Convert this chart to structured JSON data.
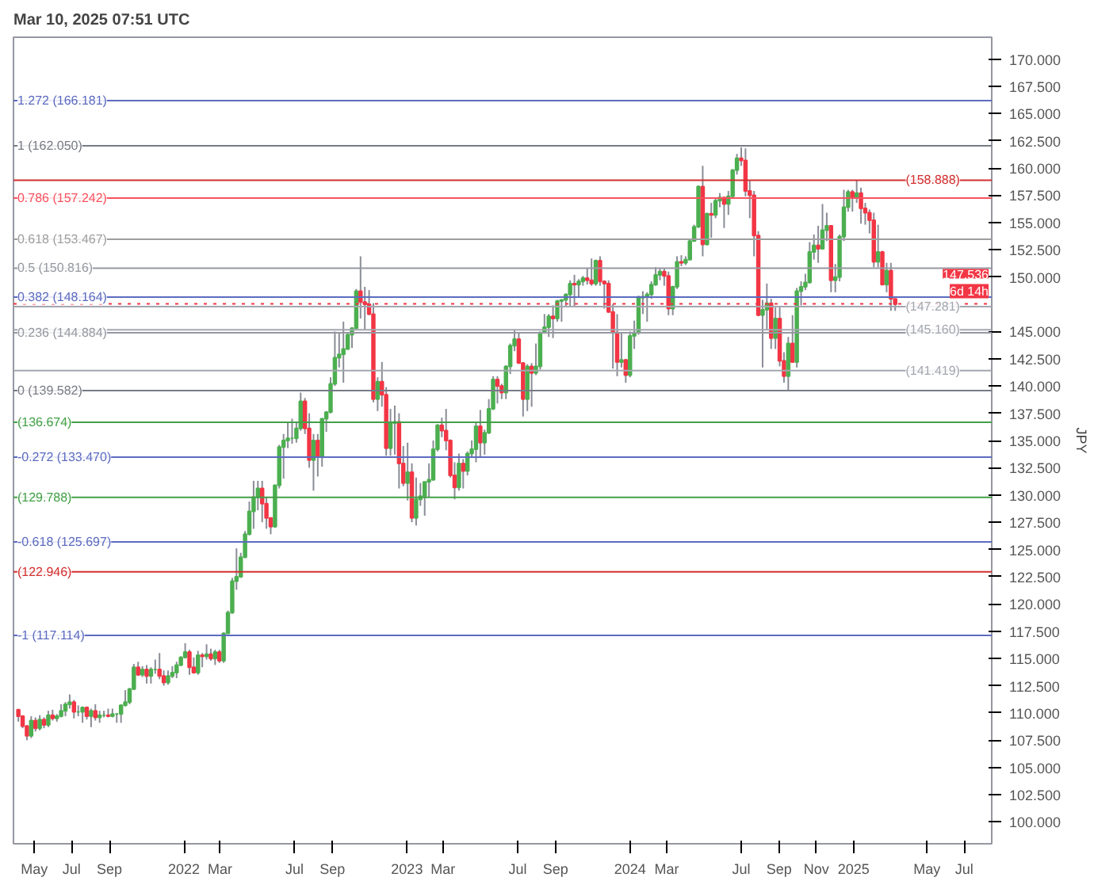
{
  "chart_data": {
    "type": "candlestick",
    "ylabel": "JPY",
    "annotations": [
      "Mar 10, 2025 07:51 UTC",
      "6d 14h"
    ],
    "grid": false,
    "xlim": [
      "2021-03-28",
      "2025-08-15"
    ],
    "xticks": [
      {
        "value": "2021-05-01",
        "label": "May"
      },
      {
        "value": "2021-07-01",
        "label": "Jul"
      },
      {
        "value": "2021-09-01",
        "label": "Sep"
      },
      {
        "value": "2022-01-01",
        "label": "2022"
      },
      {
        "value": "2022-03-01",
        "label": "Mar"
      },
      {
        "value": "2022-07-01",
        "label": "Jul"
      },
      {
        "value": "2022-09-01",
        "label": "Sep"
      },
      {
        "value": "2023-01-01",
        "label": "2023"
      },
      {
        "value": "2023-03-01",
        "label": "Mar"
      },
      {
        "value": "2023-07-01",
        "label": "Jul"
      },
      {
        "value": "2023-09-01",
        "label": "Sep"
      },
      {
        "value": "2024-01-01",
        "label": "2024"
      },
      {
        "value": "2024-03-01",
        "label": "Mar"
      },
      {
        "value": "2024-07-01",
        "label": "Jul"
      },
      {
        "value": "2024-09-01",
        "label": "Sep"
      },
      {
        "value": "2024-11-01",
        "label": "Nov"
      },
      {
        "value": "2025-01-01",
        "label": "2025"
      },
      {
        "value": "2025-05-01",
        "label": "May"
      },
      {
        "value": "2025-07-01",
        "label": "Jul"
      }
    ],
    "ylim": [
      98,
      172
    ],
    "yticks": [
      {
        "value": 100,
        "label": "100.000"
      },
      {
        "value": 102.5,
        "label": "102.500"
      },
      {
        "value": 105,
        "label": "105.000"
      },
      {
        "value": 107.5,
        "label": "107.500"
      },
      {
        "value": 110,
        "label": "110.000"
      },
      {
        "value": 112.5,
        "label": "112.500"
      },
      {
        "value": 115,
        "label": "115.000"
      },
      {
        "value": 117.5,
        "label": "117.500"
      },
      {
        "value": 120,
        "label": "120.000"
      },
      {
        "value": 122.5,
        "label": "122.500"
      },
      {
        "value": 125,
        "label": "125.000"
      },
      {
        "value": 127.5,
        "label": "127.500"
      },
      {
        "value": 130,
        "label": "130.000"
      },
      {
        "value": 132.5,
        "label": "132.500"
      },
      {
        "value": 135,
        "label": "135.000"
      },
      {
        "value": 137.5,
        "label": "137.500"
      },
      {
        "value": 140,
        "label": "140.000"
      },
      {
        "value": 142.5,
        "label": "142.500"
      },
      {
        "value": 145,
        "label": "145.000"
      },
      {
        "value": 150,
        "label": "150.000"
      },
      {
        "value": 152.5,
        "label": "152.500"
      },
      {
        "value": 155,
        "label": "155.000"
      },
      {
        "value": 157.5,
        "label": "157.500"
      },
      {
        "value": 160,
        "label": "160.000"
      },
      {
        "value": 162.5,
        "label": "162.500"
      },
      {
        "value": 165,
        "label": "165.000"
      },
      {
        "value": 167.5,
        "label": "167.500"
      },
      {
        "value": 170,
        "label": "170.000"
      }
    ],
    "ref_lines": [
      {
        "axis": "y",
        "value": 166.181,
        "label": "1.272 (166.181)",
        "color": "#5c6bc0"
      },
      {
        "axis": "y",
        "value": 162.05,
        "label": "1 (162.050)",
        "color": "#787b86"
      },
      {
        "axis": "y",
        "value": 157.242,
        "label": "0.786 (157.242)",
        "color": "#f7525f"
      },
      {
        "axis": "y",
        "value": 153.467,
        "label": "0.618 (153.467)",
        "color": "#9e9e9e"
      },
      {
        "axis": "y",
        "value": 150.816,
        "label": "0.5 (150.816)",
        "color": "#9598a1"
      },
      {
        "axis": "y",
        "value": 148.164,
        "label": "0.382 (148.164)",
        "color": "#5c6bc0"
      },
      {
        "axis": "y",
        "value": 144.884,
        "label": "0.236 (144.884)",
        "color": "#9598a1"
      },
      {
        "axis": "y",
        "value": 139.582,
        "label": "0 (139.582)",
        "color": "#787b86"
      },
      {
        "axis": "y",
        "value": 133.47,
        "label": "-0.272 (133.470)",
        "color": "#5c6bc0"
      },
      {
        "axis": "y",
        "value": 125.697,
        "label": "-0.618 (125.697)",
        "color": "#5c6bc0"
      },
      {
        "axis": "y",
        "value": 117.114,
        "label": "-1 (117.114)",
        "color": "#5c6bc0"
      },
      {
        "axis": "y",
        "value": 158.888,
        "label": "(158.888)",
        "color": "#d32f2f"
      },
      {
        "axis": "y",
        "value": 147.281,
        "label": "(147.281)",
        "color": "#a3a6af"
      },
      {
        "axis": "y",
        "value": 145.16,
        "label": "(145.160)",
        "color": "#a3a6af"
      },
      {
        "axis": "y",
        "value": 141.419,
        "label": "(141.419)",
        "color": "#a3a6af"
      },
      {
        "axis": "y",
        "value": 136.674,
        "label": "(136.674)",
        "color": "#43a047"
      },
      {
        "axis": "y",
        "value": 129.788,
        "label": "(129.788)",
        "color": "#43a047"
      },
      {
        "axis": "y",
        "value": 122.946,
        "label": "(122.946)",
        "color": "#d32f2f"
      },
      {
        "axis": "y",
        "value": 147.536,
        "label": "147.536",
        "color": "#f23645",
        "line_style": "dotted"
      }
    ],
    "x": [
      "2021-04-05",
      "2021-04-12",
      "2021-04-19",
      "2021-04-26",
      "2021-05-03",
      "2021-05-10",
      "2021-05-17",
      "2021-05-24",
      "2021-05-31",
      "2021-06-07",
      "2021-06-14",
      "2021-06-21",
      "2021-06-28",
      "2021-07-05",
      "2021-07-12",
      "2021-07-19",
      "2021-07-26",
      "2021-08-02",
      "2021-08-09",
      "2021-08-16",
      "2021-08-23",
      "2021-08-30",
      "2021-09-06",
      "2021-09-13",
      "2021-09-20",
      "2021-09-27",
      "2021-10-04",
      "2021-10-11",
      "2021-10-18",
      "2021-10-25",
      "2021-11-01",
      "2021-11-08",
      "2021-11-15",
      "2021-11-22",
      "2021-11-29",
      "2021-12-06",
      "2021-12-13",
      "2021-12-20",
      "2021-12-27",
      "2022-01-03",
      "2022-01-10",
      "2022-01-17",
      "2022-01-24",
      "2022-01-31",
      "2022-02-07",
      "2022-02-14",
      "2022-02-21",
      "2022-02-28",
      "2022-03-07",
      "2022-03-14",
      "2022-03-21",
      "2022-03-28",
      "2022-04-04",
      "2022-04-11",
      "2022-04-18",
      "2022-04-25",
      "2022-05-02",
      "2022-05-09",
      "2022-05-16",
      "2022-05-23",
      "2022-05-30",
      "2022-06-06",
      "2022-06-13",
      "2022-06-20",
      "2022-06-27",
      "2022-07-04",
      "2022-07-11",
      "2022-07-18",
      "2022-07-25",
      "2022-08-01",
      "2022-08-08",
      "2022-08-15",
      "2022-08-22",
      "2022-08-29",
      "2022-09-05",
      "2022-09-12",
      "2022-09-19",
      "2022-09-26",
      "2022-10-03",
      "2022-10-10",
      "2022-10-17",
      "2022-10-24",
      "2022-10-31",
      "2022-11-07",
      "2022-11-14",
      "2022-11-21",
      "2022-11-28",
      "2022-12-05",
      "2022-12-12",
      "2022-12-19",
      "2022-12-26",
      "2023-01-02",
      "2023-01-09",
      "2023-01-16",
      "2023-01-23",
      "2023-01-30",
      "2023-02-06",
      "2023-02-13",
      "2023-02-20",
      "2023-02-27",
      "2023-03-06",
      "2023-03-13",
      "2023-03-20",
      "2023-03-27",
      "2023-04-03",
      "2023-04-10",
      "2023-04-17",
      "2023-04-24",
      "2023-05-01",
      "2023-05-08",
      "2023-05-15",
      "2023-05-22",
      "2023-05-29",
      "2023-06-05",
      "2023-06-12",
      "2023-06-19",
      "2023-06-26",
      "2023-07-03",
      "2023-07-10",
      "2023-07-17",
      "2023-07-24",
      "2023-07-31",
      "2023-08-07",
      "2023-08-14",
      "2023-08-21",
      "2023-08-28",
      "2023-09-04",
      "2023-09-11",
      "2023-09-18",
      "2023-09-25",
      "2023-10-02",
      "2023-10-09",
      "2023-10-16",
      "2023-10-23",
      "2023-10-30",
      "2023-11-06",
      "2023-11-13",
      "2023-11-20",
      "2023-11-27",
      "2023-12-04",
      "2023-12-11",
      "2023-12-18",
      "2023-12-25",
      "2024-01-01",
      "2024-01-08",
      "2024-01-15",
      "2024-01-22",
      "2024-01-29",
      "2024-02-05",
      "2024-02-12",
      "2024-02-19",
      "2024-02-26",
      "2024-03-04",
      "2024-03-11",
      "2024-03-18",
      "2024-03-25",
      "2024-04-01",
      "2024-04-08",
      "2024-04-15",
      "2024-04-22",
      "2024-04-29",
      "2024-05-06",
      "2024-05-13",
      "2024-05-20",
      "2024-05-27",
      "2024-06-03",
      "2024-06-10",
      "2024-06-17",
      "2024-06-24",
      "2024-07-01",
      "2024-07-08",
      "2024-07-15",
      "2024-07-22",
      "2024-07-29",
      "2024-08-05",
      "2024-08-12",
      "2024-08-19",
      "2024-08-26",
      "2024-09-02",
      "2024-09-09",
      "2024-09-16",
      "2024-09-23",
      "2024-09-30",
      "2024-10-07",
      "2024-10-14",
      "2024-10-21",
      "2024-10-28",
      "2024-11-04",
      "2024-11-11",
      "2024-11-18",
      "2024-11-25",
      "2024-12-02",
      "2024-12-09",
      "2024-12-16",
      "2024-12-23",
      "2024-12-30",
      "2025-01-06",
      "2025-01-13",
      "2025-01-20",
      "2025-01-27",
      "2025-02-03",
      "2025-02-10",
      "2025-02-17",
      "2025-02-24",
      "2025-03-03",
      "2025-03-10"
    ],
    "ohlc": [
      [
        110.3,
        110.3,
        109.2,
        109.7
      ],
      [
        109.7,
        109.8,
        108.6,
        108.8
      ],
      [
        108.8,
        108.9,
        107.5,
        107.9
      ],
      [
        107.9,
        109.7,
        107.7,
        109.3
      ],
      [
        109.3,
        109.6,
        108.3,
        108.6
      ],
      [
        108.6,
        109.8,
        108.4,
        109.4
      ],
      [
        109.4,
        109.6,
        108.6,
        108.9
      ],
      [
        108.9,
        110.2,
        108.7,
        109.8
      ],
      [
        109.8,
        110.3,
        109.3,
        109.5
      ],
      [
        109.5,
        109.9,
        109.2,
        109.7
      ],
      [
        109.7,
        110.8,
        109.6,
        110.2
      ],
      [
        110.2,
        111.0,
        109.7,
        110.8
      ],
      [
        110.8,
        111.7,
        110.4,
        111.0
      ],
      [
        111.0,
        111.2,
        109.5,
        110.1
      ],
      [
        110.1,
        110.7,
        109.7,
        110.1
      ],
      [
        110.1,
        110.6,
        109.1,
        110.5
      ],
      [
        110.5,
        110.6,
        109.4,
        109.7
      ],
      [
        109.7,
        110.4,
        108.7,
        110.2
      ],
      [
        110.2,
        110.8,
        109.3,
        109.6
      ],
      [
        109.6,
        110.2,
        109.1,
        109.8
      ],
      [
        109.8,
        110.2,
        109.6,
        109.8
      ],
      [
        109.8,
        110.4,
        109.6,
        109.7
      ],
      [
        109.7,
        110.4,
        109.6,
        109.9
      ],
      [
        109.9,
        110.0,
        109.1,
        109.9
      ],
      [
        109.9,
        110.8,
        109.1,
        110.7
      ],
      [
        110.7,
        112.1,
        110.6,
        111.0
      ],
      [
        111.0,
        112.3,
        110.8,
        112.2
      ],
      [
        112.2,
        114.5,
        112.1,
        114.2
      ],
      [
        114.2,
        114.7,
        113.4,
        113.5
      ],
      [
        113.5,
        114.3,
        113.3,
        114.0
      ],
      [
        114.0,
        114.4,
        112.7,
        113.4
      ],
      [
        113.4,
        114.2,
        112.7,
        114.0
      ],
      [
        114.0,
        114.9,
        113.6,
        114.0
      ],
      [
        114.0,
        115.5,
        113.1,
        113.4
      ],
      [
        113.4,
        113.9,
        112.5,
        112.8
      ],
      [
        112.8,
        113.9,
        112.6,
        113.4
      ],
      [
        113.4,
        114.3,
        113.2,
        113.7
      ],
      [
        113.7,
        114.7,
        113.2,
        114.4
      ],
      [
        114.4,
        115.2,
        114.3,
        115.1
      ],
      [
        115.1,
        116.4,
        115.0,
        115.6
      ],
      [
        115.6,
        115.8,
        113.5,
        114.2
      ],
      [
        114.2,
        115.1,
        113.6,
        113.7
      ],
      [
        113.7,
        115.7,
        113.5,
        115.3
      ],
      [
        115.3,
        115.5,
        114.2,
        115.2
      ],
      [
        115.2,
        116.3,
        114.9,
        115.4
      ],
      [
        115.4,
        115.9,
        114.8,
        115.0
      ],
      [
        115.0,
        115.8,
        114.4,
        115.6
      ],
      [
        115.6,
        115.8,
        114.6,
        114.8
      ],
      [
        114.8,
        117.4,
        114.6,
        117.3
      ],
      [
        117.3,
        119.4,
        117.3,
        119.2
      ],
      [
        119.2,
        122.4,
        119.1,
        122.1
      ],
      [
        122.1,
        125.1,
        121.3,
        122.5
      ],
      [
        122.5,
        124.7,
        122.4,
        124.3
      ],
      [
        124.3,
        126.7,
        124.2,
        126.4
      ],
      [
        126.4,
        129.4,
        126.3,
        128.5
      ],
      [
        128.5,
        131.3,
        126.9,
        129.8
      ],
      [
        129.8,
        131.3,
        128.6,
        130.6
      ],
      [
        130.6,
        131.3,
        127.5,
        129.2
      ],
      [
        129.2,
        129.8,
        126.9,
        127.9
      ],
      [
        127.9,
        127.9,
        126.4,
        127.1
      ],
      [
        127.1,
        130.9,
        127.0,
        130.9
      ],
      [
        130.9,
        134.6,
        130.6,
        134.4
      ],
      [
        134.4,
        135.6,
        131.5,
        135.0
      ],
      [
        135.0,
        136.7,
        134.3,
        135.2
      ],
      [
        135.2,
        137.0,
        134.7,
        135.2
      ],
      [
        135.2,
        136.6,
        134.8,
        136.1
      ],
      [
        136.1,
        139.4,
        135.9,
        138.6
      ],
      [
        138.6,
        138.9,
        135.6,
        136.1
      ],
      [
        136.1,
        137.5,
        132.5,
        133.2
      ],
      [
        133.2,
        135.6,
        130.4,
        135.0
      ],
      [
        135.0,
        135.6,
        131.7,
        133.5
      ],
      [
        133.5,
        137.0,
        132.6,
        137.0
      ],
      [
        137.0,
        137.7,
        135.8,
        137.6
      ],
      [
        137.6,
        140.8,
        137.5,
        140.2
      ],
      [
        140.2,
        145.0,
        140.0,
        142.6
      ],
      [
        142.6,
        144.9,
        141.7,
        142.9
      ],
      [
        142.9,
        145.9,
        140.3,
        143.4
      ],
      [
        143.4,
        144.9,
        143.3,
        144.7
      ],
      [
        144.7,
        145.4,
        143.5,
        145.3
      ],
      [
        145.3,
        148.9,
        145.1,
        148.7
      ],
      [
        148.7,
        151.9,
        146.2,
        147.7
      ],
      [
        147.7,
        149.1,
        145.1,
        147.5
      ],
      [
        147.5,
        148.8,
        146.5,
        146.6
      ],
      [
        146.6,
        147.6,
        138.5,
        138.8
      ],
      [
        138.8,
        140.8,
        137.7,
        140.4
      ],
      [
        140.4,
        142.2,
        138.1,
        139.2
      ],
      [
        139.2,
        139.9,
        133.6,
        134.3
      ],
      [
        134.3,
        137.9,
        133.6,
        136.6
      ],
      [
        136.6,
        138.2,
        133.7,
        136.7
      ],
      [
        136.7,
        137.5,
        130.6,
        132.9
      ],
      [
        132.9,
        134.5,
        130.8,
        131.1
      ],
      [
        131.1,
        134.8,
        129.5,
        132.1
      ],
      [
        132.1,
        132.9,
        127.5,
        127.9
      ],
      [
        127.9,
        131.6,
        127.2,
        129.6
      ],
      [
        129.6,
        131.1,
        129.0,
        129.9
      ],
      [
        129.9,
        131.2,
        128.1,
        131.2
      ],
      [
        131.2,
        132.9,
        129.8,
        131.4
      ],
      [
        131.4,
        135.0,
        131.3,
        134.2
      ],
      [
        134.2,
        136.5,
        134.0,
        136.4
      ],
      [
        136.4,
        137.1,
        135.3,
        135.9
      ],
      [
        135.9,
        137.9,
        134.1,
        135.0
      ],
      [
        135.0,
        135.1,
        131.6,
        131.8
      ],
      [
        131.8,
        133.0,
        129.6,
        130.7
      ],
      [
        130.7,
        133.8,
        130.4,
        132.9
      ],
      [
        132.9,
        133.3,
        130.6,
        132.2
      ],
      [
        132.2,
        134.0,
        131.8,
        133.8
      ],
      [
        133.8,
        135.0,
        133.5,
        134.2
      ],
      [
        134.2,
        136.6,
        133.0,
        136.3
      ],
      [
        136.3,
        137.8,
        133.5,
        134.8
      ],
      [
        134.8,
        136.0,
        133.7,
        135.7
      ],
      [
        135.7,
        138.8,
        135.6,
        137.9
      ],
      [
        137.9,
        140.9,
        137.8,
        140.6
      ],
      [
        140.6,
        140.9,
        138.4,
        140.0
      ],
      [
        140.0,
        140.2,
        138.8,
        139.4
      ],
      [
        139.4,
        141.9,
        138.8,
        141.8
      ],
      [
        141.8,
        143.9,
        141.1,
        143.7
      ],
      [
        143.7,
        145.1,
        143.2,
        144.3
      ],
      [
        144.3,
        144.9,
        142.1,
        142.1
      ],
      [
        142.1,
        142.2,
        137.2,
        138.8
      ],
      [
        138.8,
        142.0,
        137.7,
        141.8
      ],
      [
        141.8,
        142.1,
        138.1,
        141.2
      ],
      [
        141.2,
        143.9,
        141.0,
        141.8
      ],
      [
        141.8,
        145.0,
        141.5,
        144.9
      ],
      [
        144.9,
        146.6,
        144.8,
        145.4
      ],
      [
        145.4,
        146.6,
        144.5,
        146.4
      ],
      [
        146.4,
        147.4,
        144.4,
        146.2
      ],
      [
        146.2,
        147.9,
        145.9,
        147.8
      ],
      [
        147.8,
        147.9,
        145.9,
        147.9
      ],
      [
        147.9,
        148.5,
        147.3,
        148.4
      ],
      [
        148.4,
        149.7,
        147.3,
        149.4
      ],
      [
        149.4,
        150.2,
        147.3,
        149.3
      ],
      [
        149.3,
        149.8,
        148.2,
        149.6
      ],
      [
        149.6,
        150.1,
        149.2,
        149.9
      ],
      [
        149.9,
        150.8,
        149.3,
        149.7
      ],
      [
        149.7,
        151.7,
        149.2,
        149.4
      ],
      [
        149.4,
        151.6,
        149.2,
        151.5
      ],
      [
        151.5,
        151.9,
        149.2,
        149.6
      ],
      [
        149.6,
        149.7,
        147.1,
        149.4
      ],
      [
        149.4,
        149.7,
        146.7,
        146.8
      ],
      [
        146.8,
        147.5,
        141.6,
        144.9
      ],
      [
        144.9,
        146.6,
        140.9,
        142.2
      ],
      [
        142.2,
        144.9,
        141.7,
        142.4
      ],
      [
        142.4,
        142.5,
        140.3,
        141.0
      ],
      [
        141.0,
        145.0,
        140.8,
        144.6
      ],
      [
        144.6,
        146.0,
        143.4,
        144.9
      ],
      [
        144.9,
        148.3,
        144.7,
        148.1
      ],
      [
        148.1,
        148.7,
        146.6,
        148.2
      ],
      [
        148.2,
        148.6,
        145.9,
        148.4
      ],
      [
        148.4,
        149.6,
        148.0,
        149.3
      ],
      [
        149.3,
        150.9,
        149.2,
        150.2
      ],
      [
        150.2,
        150.8,
        149.7,
        150.5
      ],
      [
        150.5,
        150.8,
        149.2,
        150.1
      ],
      [
        150.1,
        150.5,
        146.5,
        147.1
      ],
      [
        147.1,
        149.2,
        146.5,
        149.1
      ],
      [
        149.1,
        151.9,
        148.9,
        151.4
      ],
      [
        151.4,
        152.0,
        151.0,
        151.3
      ],
      [
        151.3,
        151.9,
        151.1,
        151.6
      ],
      [
        151.6,
        153.4,
        151.6,
        153.3
      ],
      [
        153.3,
        154.8,
        153.3,
        154.6
      ],
      [
        154.6,
        158.4,
        154.5,
        158.3
      ],
      [
        158.3,
        160.2,
        151.9,
        153.0
      ],
      [
        153.0,
        155.9,
        152.9,
        155.8
      ],
      [
        155.8,
        156.8,
        153.6,
        155.7
      ],
      [
        155.7,
        157.2,
        155.4,
        157.0
      ],
      [
        157.0,
        157.7,
        156.4,
        157.3
      ],
      [
        157.3,
        157.3,
        154.5,
        156.7
      ],
      [
        156.7,
        157.9,
        155.7,
        157.4
      ],
      [
        157.4,
        159.9,
        157.3,
        159.8
      ],
      [
        159.8,
        161.3,
        159.4,
        160.9
      ],
      [
        160.9,
        161.9,
        160.2,
        160.7
      ],
      [
        160.7,
        161.8,
        157.4,
        157.9
      ],
      [
        157.9,
        158.9,
        155.4,
        157.5
      ],
      [
        157.5,
        157.9,
        151.9,
        153.8
      ],
      [
        153.8,
        154.2,
        146.4,
        146.5
      ],
      [
        146.5,
        147.9,
        141.7,
        147.0
      ],
      [
        147.0,
        149.4,
        145.2,
        147.6
      ],
      [
        147.6,
        148.0,
        143.4,
        144.4
      ],
      [
        144.4,
        147.2,
        143.4,
        146.2
      ],
      [
        146.2,
        147.2,
        141.8,
        142.3
      ],
      [
        142.3,
        143.1,
        140.3,
        140.9
      ],
      [
        140.9,
        144.5,
        139.6,
        143.9
      ],
      [
        143.9,
        146.5,
        142.2,
        142.2
      ],
      [
        142.2,
        149.0,
        141.7,
        148.7
      ],
      [
        148.7,
        149.6,
        147.4,
        149.1
      ],
      [
        149.1,
        150.3,
        148.8,
        149.5
      ],
      [
        149.5,
        153.2,
        149.4,
        152.3
      ],
      [
        152.3,
        153.9,
        151.6,
        152.9
      ],
      [
        152.9,
        154.7,
        151.3,
        152.6
      ],
      [
        152.6,
        156.7,
        152.6,
        154.3
      ],
      [
        154.3,
        155.9,
        153.3,
        154.7
      ],
      [
        154.7,
        154.7,
        148.6,
        149.7
      ],
      [
        149.7,
        151.2,
        148.6,
        150.0
      ],
      [
        150.0,
        153.9,
        149.6,
        153.7
      ],
      [
        153.7,
        158.0,
        153.3,
        156.4
      ],
      [
        156.4,
        158.0,
        156.0,
        157.8
      ],
      [
        157.8,
        158.0,
        156.0,
        157.3
      ],
      [
        157.3,
        158.9,
        156.8,
        157.7
      ],
      [
        157.7,
        158.2,
        154.9,
        156.3
      ],
      [
        156.3,
        156.8,
        154.8,
        155.9
      ],
      [
        155.9,
        156.2,
        154.0,
        155.2
      ],
      [
        155.2,
        155.9,
        150.9,
        151.4
      ],
      [
        151.4,
        154.8,
        150.9,
        152.3
      ],
      [
        152.3,
        152.4,
        149.3,
        149.3
      ],
      [
        149.3,
        151.3,
        148.6,
        150.6
      ],
      [
        150.6,
        151.3,
        146.9,
        148.0
      ],
      [
        148.0,
        148.0,
        146.9,
        147.5
      ]
    ]
  }
}
